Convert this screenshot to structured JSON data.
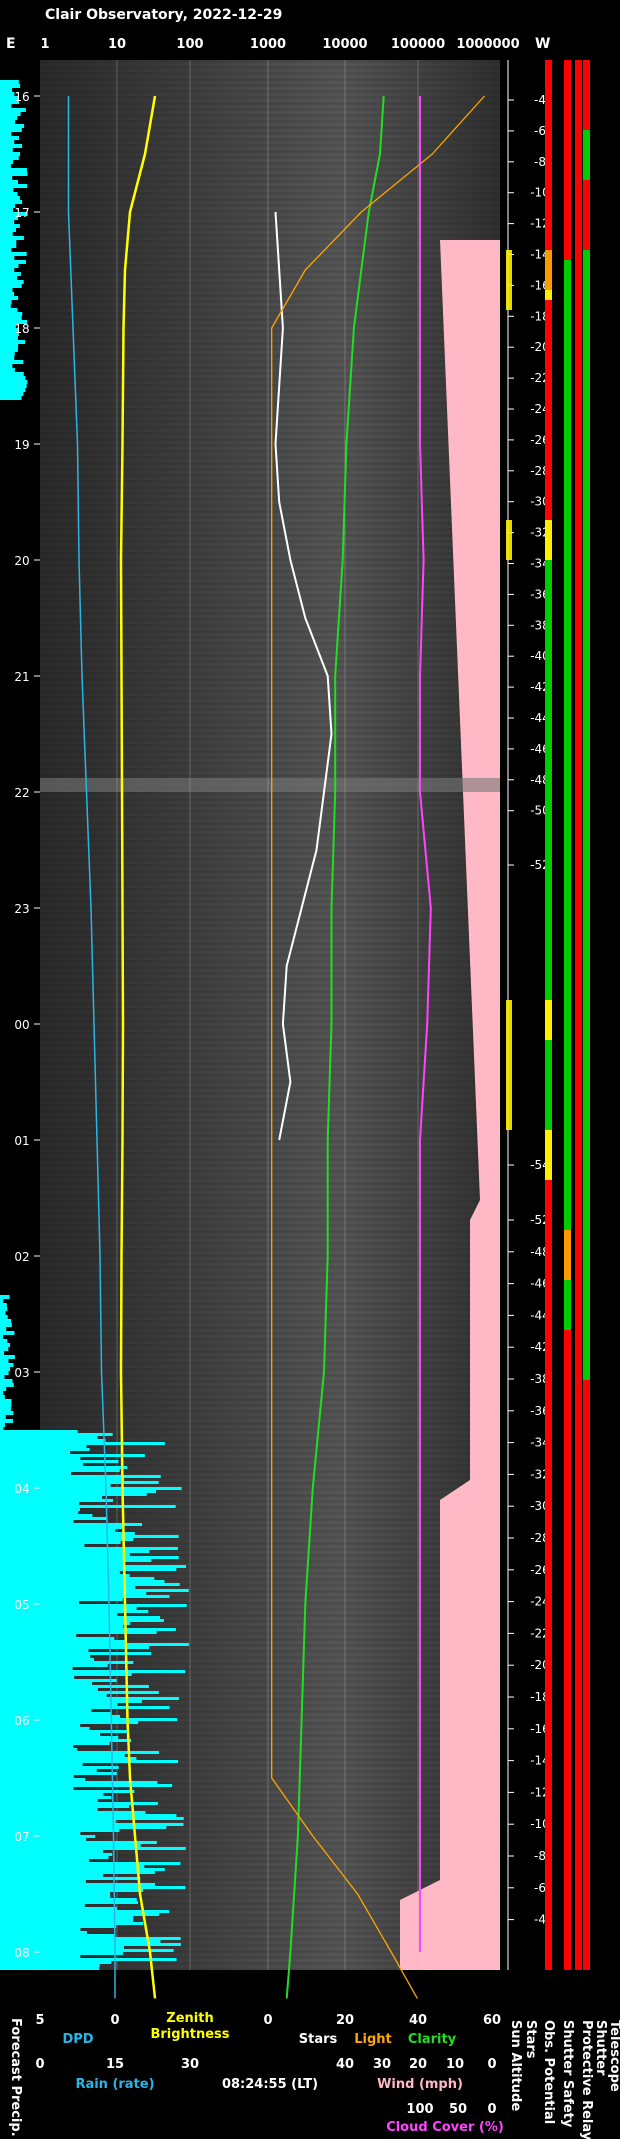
{
  "title": "Clair Observatory, 2022-12-29",
  "top_axis": {
    "left_label": "E",
    "right_label": "W",
    "ticks": [
      "1",
      "10",
      "100",
      "1000",
      "10000",
      "100000",
      "1000000"
    ]
  },
  "colors": {
    "dpd": "#29b6e6",
    "zenith": "#ffff00",
    "stars": "#ffffff",
    "light": "#ffa500",
    "clarity": "#22dd22",
    "cloud": "#ff44ff",
    "rain": "#00ffff",
    "pink": "#ffb8c6",
    "red": "#ff0000",
    "green": "#00cc00",
    "yellow": "#ffee00",
    "orange": "#ff9900",
    "sun": "#e08a00"
  },
  "chart_data": {
    "type": "line",
    "title": "Clair Observatory, 2022-12-29",
    "time_ticks": [
      "16",
      "17",
      "18",
      "19",
      "20",
      "21",
      "22",
      "23",
      "00",
      "01",
      "02",
      "03",
      "04",
      "05",
      "06",
      "07",
      "08"
    ],
    "sun_altitude_ticks": [
      "-4",
      "-6",
      "-8",
      "-10",
      "-12",
      "-14",
      "-16",
      "-18",
      "-20",
      "-22",
      "-24",
      "-26",
      "-28",
      "-30",
      "-32",
      "-34",
      "-36",
      "-38",
      "-40",
      "-42",
      "-44",
      "-46",
      "-48",
      "-50",
      "-52",
      "-54",
      "-52",
      "-48",
      "-46",
      "-44",
      "-42",
      "-38",
      "-36",
      "-34",
      "-32",
      "-30",
      "-28",
      "-26",
      "-24",
      "-22",
      "-20",
      "-18",
      "-16",
      "-14",
      "-12",
      "-10",
      "-8",
      "-6",
      "-4"
    ],
    "bottom_axes": {
      "dpd": {
        "label": "DPD",
        "ticks": [
          "5",
          "0"
        ]
      },
      "zenith": {
        "label": "Zenith Brightness",
        "ticks": [
          "15",
          "30"
        ]
      },
      "rain": {
        "label": "Rain (rate)",
        "ticks": [
          "0",
          "15",
          "30"
        ]
      },
      "stars_light_clarity": {
        "labels": [
          "Stars",
          "Light",
          "Clarity"
        ],
        "ticks": [
          "0",
          "20",
          "40",
          "60"
        ]
      },
      "wind": {
        "label": "Wind (mph)",
        "ticks": [
          "40",
          "30",
          "20",
          "10",
          "0"
        ]
      },
      "cloud": {
        "label": "Cloud Cover (%)",
        "ticks": [
          "100",
          "50",
          "0"
        ]
      },
      "time": "08:24:55 (LT)"
    },
    "right_labels": [
      "Sun Altitude",
      "Stars",
      "Obs. Potential",
      "Shutter Safety",
      "Protective Relay",
      "Shutter",
      "Telescope"
    ],
    "left_label": "Forecast Precip.",
    "series": [
      {
        "name": "DPD",
        "x_hours": [
          16,
          17,
          18,
          19,
          20,
          21,
          22,
          23,
          24,
          25,
          26,
          27,
          28,
          29,
          30,
          31,
          32,
          32.4
        ],
        "values": [
          3.1,
          3.1,
          2.8,
          2.5,
          2.4,
          2.2,
          1.9,
          1.6,
          1.4,
          1.2,
          1.0,
          0.9,
          0.6,
          0.4,
          0.25,
          0.1,
          0.0,
          0.0
        ]
      },
      {
        "name": "Zenith Brightness",
        "x_hours": [
          16,
          16.5,
          17,
          17.5,
          18,
          19,
          20,
          21,
          22,
          23,
          24,
          25,
          26,
          27,
          28,
          29,
          30,
          30.5,
          31,
          31.5,
          32,
          32.4
        ],
        "values": [
          23,
          21,
          18,
          17,
          16.7,
          16.5,
          16.2,
          16.3,
          16.4,
          16.5,
          16.6,
          16.5,
          16.3,
          16.2,
          16.5,
          17,
          17.5,
          18,
          19,
          20,
          22,
          23
        ]
      },
      {
        "name": "Clarity",
        "x_hours": [
          16,
          16.5,
          17,
          17.5,
          18,
          19,
          20,
          21,
          22,
          23,
          24,
          25,
          26,
          27,
          28,
          29,
          30,
          31,
          32,
          32.4
        ],
        "values": [
          31,
          30,
          27,
          25,
          23,
          21,
          20,
          18,
          18,
          17,
          17,
          16,
          16,
          15,
          12,
          10,
          9,
          8,
          6,
          5
        ]
      },
      {
        "name": "Stars",
        "x_hours": [
          17,
          17.5,
          18,
          18.5,
          19,
          19.5,
          20,
          20.5,
          21,
          21.5,
          22,
          22.5,
          23,
          23.5,
          24,
          24.5,
          25
        ],
        "values": [
          2,
          3,
          4,
          3,
          2,
          3,
          6,
          10,
          16,
          17,
          15,
          13,
          9,
          5,
          4,
          6,
          3
        ]
      },
      {
        "name": "Light",
        "x_hours": [
          16,
          16.5,
          17,
          17.5,
          18,
          30.5,
          31,
          31.5,
          32,
          32.4
        ],
        "values": [
          58,
          44,
          25,
          10,
          1,
          1,
          12,
          24,
          33,
          40
        ]
      },
      {
        "name": "Cloud Cover",
        "x_hours": [
          16,
          17,
          18,
          19,
          20,
          21,
          22,
          23,
          24,
          25,
          26,
          27,
          28,
          29,
          30,
          31,
          32
        ],
        "values": [
          0,
          0,
          0,
          0,
          5,
          0,
          0,
          15,
          10,
          0,
          0,
          0,
          0,
          0,
          0,
          0,
          0
        ]
      },
      {
        "name": "Sun Altitude",
        "x_hours": [
          16,
          17,
          18,
          19,
          20,
          21,
          22,
          23,
          24,
          25,
          26,
          27,
          28,
          29,
          30,
          31,
          32,
          32.4
        ],
        "values": [
          -4,
          -12,
          -20,
          -27,
          -34,
          -41,
          -48,
          -52,
          -54,
          -53,
          -50,
          -44,
          -38,
          -30,
          -22,
          -14,
          -6,
          -4
        ]
      }
    ]
  }
}
